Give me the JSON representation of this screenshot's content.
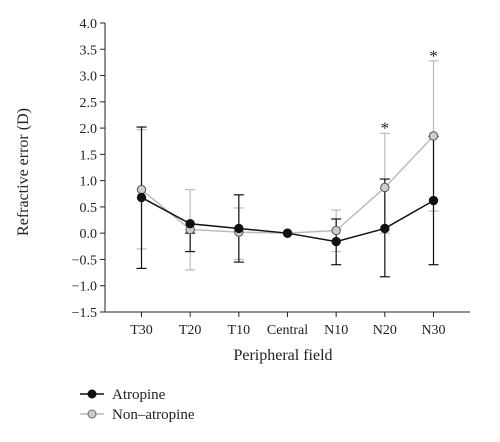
{
  "chart_data": {
    "type": "line",
    "title": "",
    "xlabel": "Peripheral field",
    "ylabel": "Refractive error (D)",
    "categories": [
      "T30",
      "T20",
      "T10",
      "Central",
      "N10",
      "N20",
      "N30"
    ],
    "ylim": [
      -1.5,
      4.0
    ],
    "yticks": [
      4.0,
      3.5,
      3.0,
      2.5,
      2.0,
      1.5,
      1.0,
      0.5,
      0.0,
      -0.5,
      -1.0,
      -1.5
    ],
    "ytick_labels": [
      "4.0",
      "3.5",
      "3.0",
      "2.5",
      "2.0",
      "1.5",
      "1.0",
      "0.5",
      "0.0",
      "−0.5",
      "−1.0",
      "−1.5"
    ],
    "grid": false,
    "legend_position": "bottom-left",
    "series": [
      {
        "name": "Atropine",
        "color": "#111111",
        "marker_fill": "#111111",
        "values": [
          0.68,
          0.18,
          0.09,
          0.0,
          -0.16,
          0.09,
          0.62
        ],
        "err_low": [
          -0.67,
          -0.35,
          -0.55,
          0.0,
          -0.6,
          -0.83,
          -0.6
        ],
        "err_high": [
          2.02,
          0.0,
          0.73,
          0.0,
          0.27,
          1.03,
          1.84
        ]
      },
      {
        "name": "Non–atropine",
        "color": "#bbbbbb",
        "marker_fill": "#cccccc",
        "values": [
          0.83,
          0.07,
          0.02,
          0.0,
          0.05,
          0.87,
          1.85
        ],
        "err_low": [
          -0.3,
          -0.7,
          -0.5,
          0.0,
          -0.35,
          0.0,
          0.42
        ],
        "err_high": [
          1.97,
          0.83,
          0.48,
          0.0,
          0.44,
          1.9,
          3.28
        ]
      }
    ],
    "annotations": [
      {
        "text": "*",
        "category": "N20",
        "y": 2.05
      },
      {
        "text": "*",
        "category": "N30",
        "y": 3.42
      }
    ]
  }
}
